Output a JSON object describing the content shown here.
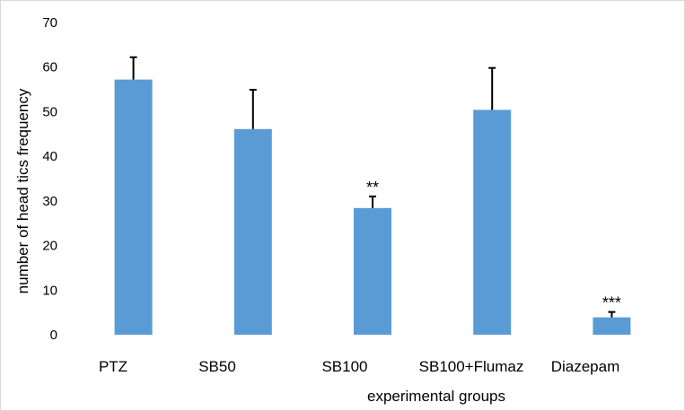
{
  "chart_data": {
    "type": "bar",
    "title": "",
    "xlabel": "experimental groups",
    "ylabel": "number of head tics frequency",
    "ylim": [
      0,
      70
    ],
    "yticks": [
      0,
      10,
      20,
      30,
      40,
      50,
      60,
      70
    ],
    "grid": false,
    "legend": "none",
    "bar_color": "#5b9bd5",
    "categories": [
      "PTZ",
      "SB50",
      "SB100",
      "SB100+Flumaz",
      "Diazepam"
    ],
    "values": [
      57.2,
      46.1,
      28.4,
      50.4,
      3.9
    ],
    "error": [
      5.0,
      8.8,
      2.6,
      9.4,
      1.2
    ],
    "significance": [
      "",
      "",
      "**",
      "",
      "***"
    ]
  }
}
